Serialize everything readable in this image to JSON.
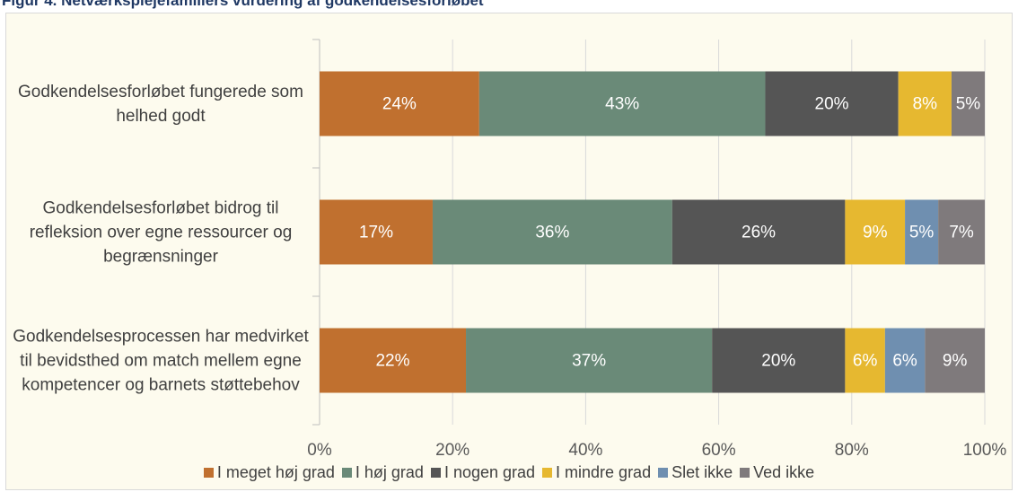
{
  "chart_data": {
    "type": "stacked_barh",
    "title": "Figur 4. Netværksplejefamiliers vurdering af godkendelsesforløbet",
    "categories": [
      "Godkendelsesforløbet fungerede som helhed godt",
      "Godkendelsesforløbet bidrog til refleksion over egne ressourcer og begrænsninger",
      "Godkendelsesprocessen har medvirket til bevidsthed om match mellem egne kompetencer og barnets støttebehov"
    ],
    "series": [
      {
        "name": "I meget høj grad",
        "color": "#c0702f",
        "values": [
          24,
          17,
          22
        ],
        "value_labels": [
          "24%",
          "17%",
          "22%"
        ]
      },
      {
        "name": "I høj grad",
        "color": "#6a8a78",
        "values": [
          43,
          36,
          37
        ],
        "value_labels": [
          "43%",
          "36%",
          "37%"
        ]
      },
      {
        "name": "I nogen grad",
        "color": "#555555",
        "values": [
          20,
          26,
          20
        ],
        "value_labels": [
          "20%",
          "26%",
          "20%"
        ]
      },
      {
        "name": "I mindre grad",
        "color": "#e6b830",
        "values": [
          8,
          9,
          6
        ],
        "value_labels": [
          "8%",
          "9%",
          "6%"
        ]
      },
      {
        "name": "Slet ikke",
        "color": "#6f8fb0",
        "values": [
          null,
          5,
          6
        ],
        "value_labels": [
          null,
          "5%",
          "6%"
        ]
      },
      {
        "name": "Ved ikke",
        "color": "#7f7a7c",
        "values": [
          5,
          7,
          9
        ],
        "value_labels": [
          "5%",
          "7%",
          "9%"
        ]
      }
    ],
    "xlim": [
      0,
      100
    ],
    "xticks": [
      {
        "value": 0,
        "label": "0%"
      },
      {
        "value": 20,
        "label": "20%"
      },
      {
        "value": 40,
        "label": "40%"
      },
      {
        "value": 60,
        "label": "60%"
      },
      {
        "value": 80,
        "label": "80%"
      },
      {
        "value": 100,
        "label": "100%"
      }
    ],
    "grid": true,
    "legend": "bottom"
  }
}
